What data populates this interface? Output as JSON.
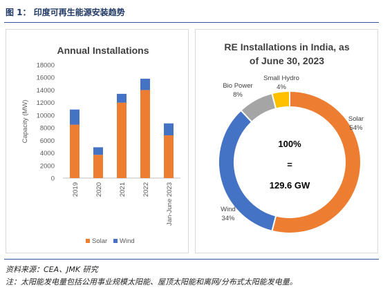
{
  "figure": {
    "title": "图 1：  印度可再生能源安装趋势",
    "source": "资料来源：CEA、JMK 研究",
    "note": "注：太阳能发电量包括公用事业规模太阳能、屋顶太阳能和离网/分布式太阳能发电量。"
  },
  "colors": {
    "solar": "#ed7d31",
    "wind": "#4472c4",
    "bio": "#a5a5a5",
    "hydro": "#ffc000",
    "rule": "#2f5597"
  },
  "chart_data": [
    {
      "type": "bar",
      "stacked": true,
      "title": "Annual Installations",
      "xlabel": "",
      "ylabel": "Capacity (MW)",
      "ylim": [
        0,
        18000
      ],
      "yticks": [
        "0",
        "2000",
        "4000",
        "6000",
        "8000",
        "10000",
        "12000",
        "14000",
        "16000",
        "18000"
      ],
      "categories": [
        "2019",
        "2020",
        "2021",
        "2022",
        "Jan-June 2023"
      ],
      "series": [
        {
          "name": "Solar",
          "values": [
            8500,
            3700,
            12000,
            14000,
            6800
          ]
        },
        {
          "name": "Wind",
          "values": [
            2400,
            1200,
            1400,
            1800,
            1900
          ]
        }
      ],
      "legend_position": "bottom",
      "grid": false
    },
    {
      "type": "pie",
      "donut": true,
      "title_lines": [
        "RE Installations in India, as",
        "of June 30, 2023"
      ],
      "center_lines": [
        "100%",
        "=",
        "129.6 GW"
      ],
      "slices": [
        {
          "name": "Solar",
          "value": 54,
          "label": "54%"
        },
        {
          "name": "Wind",
          "value": 34,
          "label": "34%"
        },
        {
          "name": "Bio Power",
          "value": 8,
          "label": "8%"
        },
        {
          "name": "Small Hydro",
          "value": 4,
          "label": "4%"
        }
      ]
    }
  ]
}
